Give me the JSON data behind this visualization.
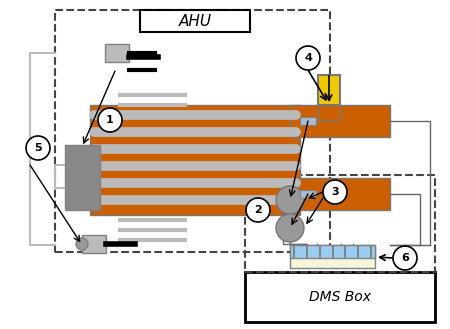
{
  "title_ahu": "AHU",
  "title_dms": "DMS Box",
  "bg_color": "#ffffff",
  "orange": "#CC6000",
  "gray_dark": "#777777",
  "gray_mid": "#999999",
  "gray_light": "#bbbbbb",
  "gray_box": "#888888",
  "yellow": "#EEC900",
  "light_blue": "#99ccee",
  "light_yellow": "#f5f5dc",
  "dashed_color": "#444444",
  "line_color": "#666666",
  "black": "#000000"
}
